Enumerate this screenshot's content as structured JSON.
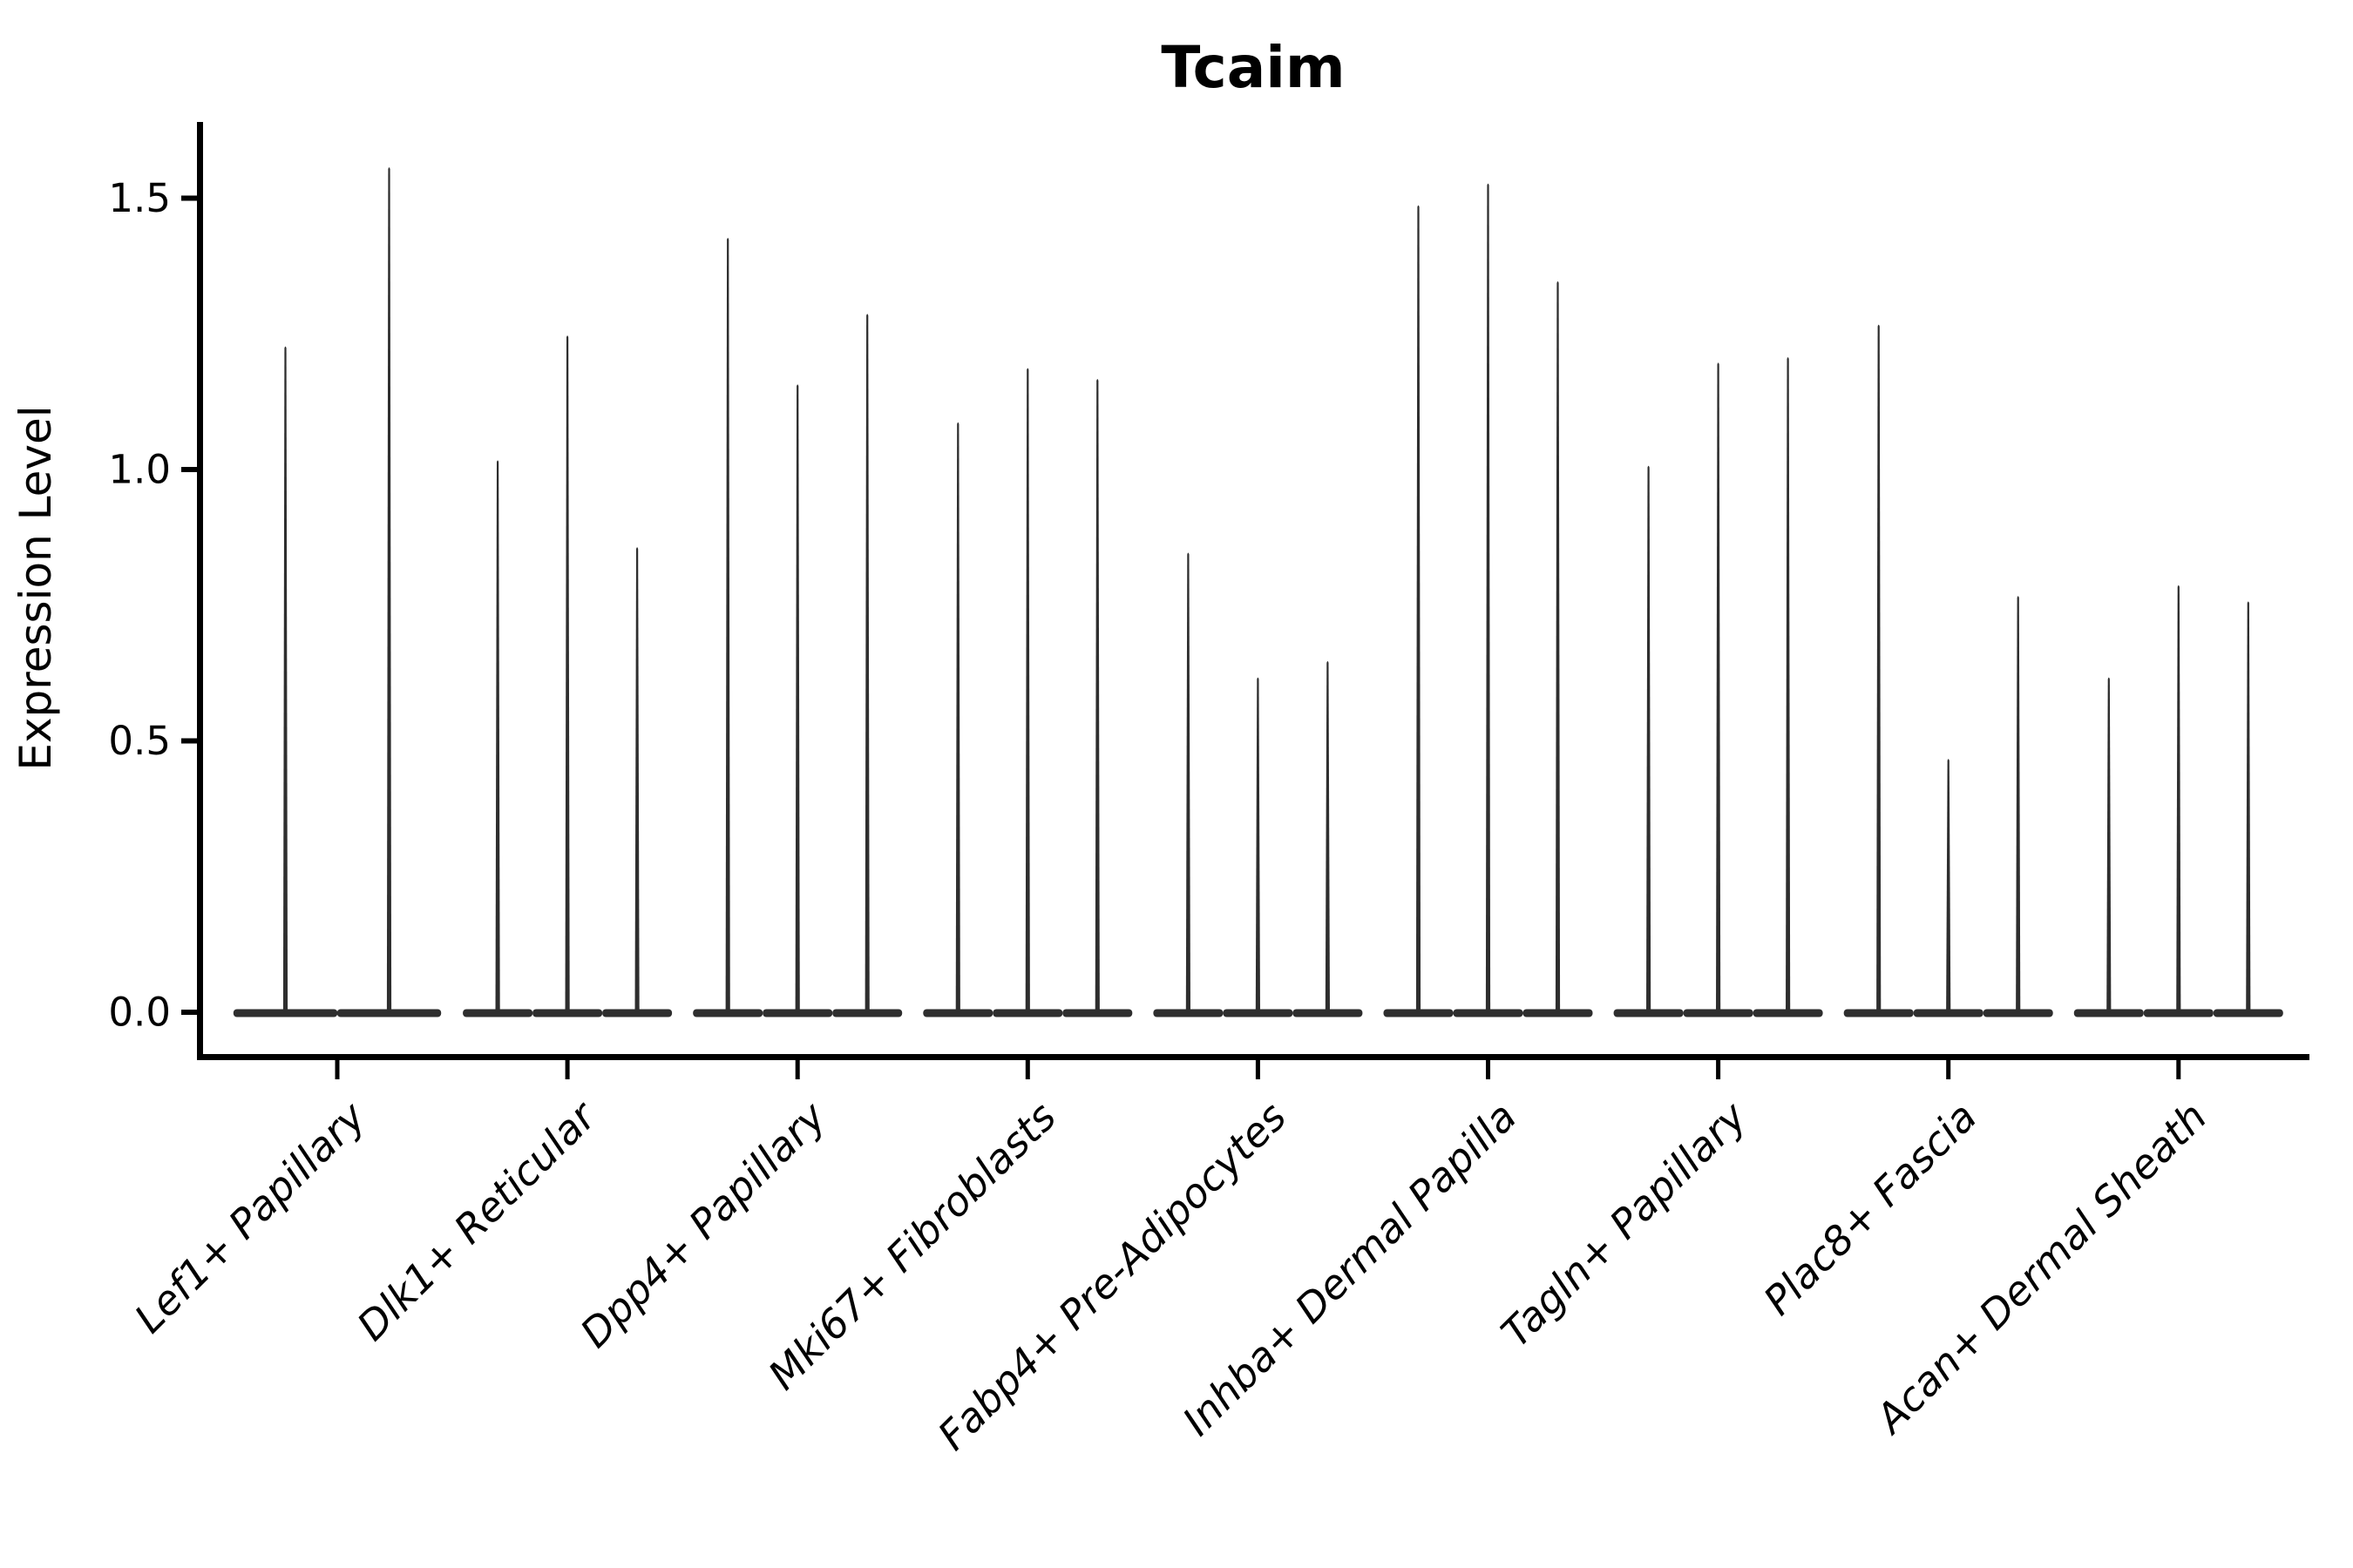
{
  "figure": {
    "background": "#ffffff"
  },
  "chart_data": {
    "type": "violin",
    "title": "Tcaim",
    "xlabel": "",
    "ylabel": "Expression Level",
    "ylim": [
      0,
      1.64
    ],
    "yticks": [
      0.0,
      0.5,
      1.0,
      1.5
    ],
    "ytick_labels": [
      "0.0",
      "0.5",
      "1.0",
      "1.5"
    ],
    "grid": false,
    "legend": "none",
    "violin_color": "#2e2e2e",
    "axis_color": "#000000",
    "shape_note": "Each violin is a needle: density mass concentrated at expression 0 (flat wide base) with a hair-thin tail rising to its maximum value.",
    "categories": [
      "Lef1+ Papillary",
      "Dlk1+ Reticular",
      "Dpp4+ Papillary",
      "Mki67+ Fibroblasts",
      "Fabp4+ Pre-Adipocytes",
      "Inhba+ Dermal Papilla",
      "Tagln+ Papillary",
      "Plac8+ Fascia",
      "Acan+ Dermal Sheath"
    ],
    "groups": [
      {
        "category": "Lef1+ Papillary",
        "violin_maxima": [
          1.23,
          1.56
        ]
      },
      {
        "category": "Dlk1+ Reticular",
        "violin_maxima": [
          1.02,
          1.25,
          0.86
        ]
      },
      {
        "category": "Dpp4+ Papillary",
        "violin_maxima": [
          1.43,
          1.16,
          1.29
        ]
      },
      {
        "category": "Mki67+ Fibroblasts",
        "violin_maxima": [
          1.09,
          1.19,
          1.17
        ]
      },
      {
        "category": "Fabp4+ Pre-Adipocytes",
        "violin_maxima": [
          0.85,
          0.62,
          0.65
        ]
      },
      {
        "category": "Inhba+ Dermal Papilla",
        "violin_maxima": [
          1.49,
          1.53,
          1.35
        ]
      },
      {
        "category": "Tagln+ Papillary",
        "violin_maxima": [
          1.01,
          1.2,
          1.21
        ]
      },
      {
        "category": "Plac8+ Fascia",
        "violin_maxima": [
          1.27,
          0.47,
          0.77
        ]
      },
      {
        "category": "Acan+ Dermal Sheath",
        "violin_maxima": [
          0.62,
          0.79,
          0.76
        ]
      }
    ]
  }
}
